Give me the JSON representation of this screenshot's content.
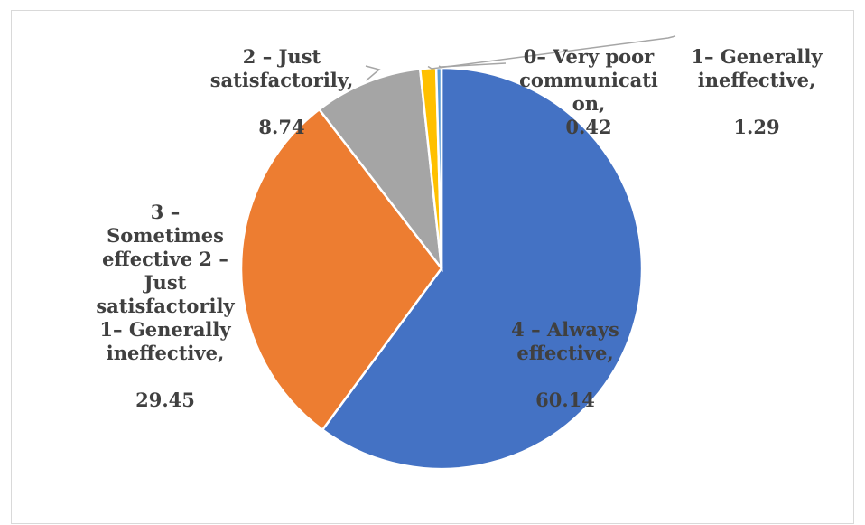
{
  "chart_data": {
    "type": "pie",
    "slices": [
      {
        "label": "4 – Always\neffective,",
        "value": 60.14,
        "value_text": "60.14",
        "color": "#4472C4"
      },
      {
        "label": "3 –\nSometimes\neffective 2 –\nJust\nsatisfactorily\n1– Generally\nineffective,",
        "value": 29.45,
        "value_text": "29.45",
        "color": "#ED7D31"
      },
      {
        "label": "2 – Just\nsatisfactorily,",
        "value": 8.74,
        "value_text": "8.74",
        "color": "#A5A5A5"
      },
      {
        "label": "1– Generally\nineffective,",
        "value": 1.29,
        "value_text": "1.29",
        "color": "#FFC000"
      },
      {
        "label": "0– Very poor\ncommunicati\non,",
        "value": 0.42,
        "value_text": "0.42",
        "color": "#5B9BD5"
      }
    ],
    "legend": "none"
  }
}
